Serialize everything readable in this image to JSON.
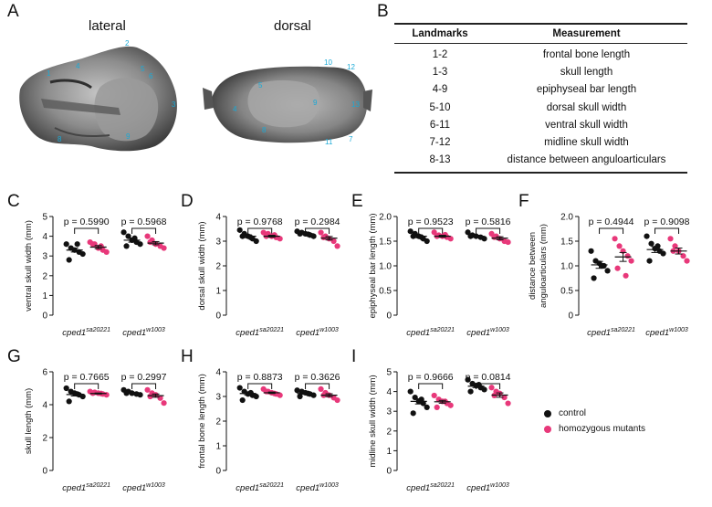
{
  "panels": {
    "A": "A",
    "B": "B",
    "C": "C",
    "D": "D",
    "E": "E",
    "F": "F",
    "G": "G",
    "H": "H",
    "I": "I"
  },
  "panel_a": {
    "views": [
      "lateral",
      "dorsal"
    ],
    "landmarks_lateral": [
      "1",
      "2",
      "3",
      "4",
      "5",
      "6",
      "8",
      "9"
    ],
    "landmarks_dorsal": [
      "10",
      "12",
      "4",
      "5",
      "7",
      "8",
      "9",
      "11",
      "13"
    ]
  },
  "table": {
    "headers": [
      "Landmarks",
      "Measurement"
    ],
    "rows": [
      [
        "1-2",
        "frontal bone length"
      ],
      [
        "1-3",
        "skull length"
      ],
      [
        "4-9",
        "epiphyseal bar length"
      ],
      [
        "5-10",
        "dorsal skull width"
      ],
      [
        "6-11",
        "ventral skull width"
      ],
      [
        "7-12",
        "midline skull width"
      ],
      [
        "8-13",
        "distance between anguloarticulars"
      ]
    ]
  },
  "colors": {
    "control": "#111111",
    "mutant": "#e8387a"
  },
  "legend": [
    {
      "label": "control",
      "color": "#111111"
    },
    {
      "label": "homozygous mutants",
      "color": "#e8387a"
    }
  ],
  "groups": [
    {
      "base": "cped1",
      "sup": "sa20221"
    },
    {
      "base": "cped1",
      "sup": "w1003"
    }
  ],
  "chart_data": [
    {
      "panel": "C",
      "type": "scatter",
      "ylabel": "ventral skull width (mm)",
      "ylim": [
        0,
        5
      ],
      "yticks": [
        0,
        1,
        2,
        3,
        4,
        5
      ],
      "pvalues": [
        "p = 0.5990",
        "p = 0.5968"
      ],
      "series": [
        {
          "name": "control",
          "group": 0,
          "values": [
            3.6,
            3.4,
            3.3,
            3.2,
            3.1,
            2.8,
            3.6
          ],
          "mean": 3.3,
          "sem": 0.1
        },
        {
          "name": "homozygous mutants",
          "group": 0,
          "values": [
            3.7,
            3.6,
            3.4,
            3.3,
            3.2,
            3.6,
            3.5
          ],
          "mean": 3.45,
          "sem": 0.08
        },
        {
          "name": "control",
          "group": 1,
          "values": [
            4.2,
            4.0,
            3.8,
            3.7,
            3.6,
            3.5,
            3.9
          ],
          "mean": 3.8,
          "sem": 0.1
        },
        {
          "name": "homozygous mutants",
          "group": 1,
          "values": [
            4.0,
            3.8,
            3.6,
            3.5,
            3.4,
            3.7
          ],
          "mean": 3.65,
          "sem": 0.08
        }
      ]
    },
    {
      "panel": "D",
      "type": "scatter",
      "ylabel": "dorsal skull width (mm)",
      "ylim": [
        0,
        4
      ],
      "yticks": [
        0,
        1,
        2,
        3,
        4
      ],
      "pvalues": [
        "p = 0.9768",
        "p = 0.2984"
      ],
      "series": [
        {
          "name": "control",
          "group": 0,
          "values": [
            3.45,
            3.3,
            3.2,
            3.1,
            3.0,
            3.2,
            3.15
          ],
          "mean": 3.2,
          "sem": 0.06
        },
        {
          "name": "homozygous mutants",
          "group": 0,
          "values": [
            3.35,
            3.3,
            3.2,
            3.15,
            3.1,
            3.2,
            3.25
          ],
          "mean": 3.2,
          "sem": 0.04
        },
        {
          "name": "control",
          "group": 1,
          "values": [
            3.4,
            3.35,
            3.3,
            3.25,
            3.2,
            3.3,
            3.28
          ],
          "mean": 3.3,
          "sem": 0.03
        },
        {
          "name": "homozygous mutants",
          "group": 1,
          "values": [
            3.35,
            3.2,
            3.1,
            3.0,
            2.8,
            3.15
          ],
          "mean": 3.12,
          "sem": 0.07
        }
      ]
    },
    {
      "panel": "E",
      "type": "scatter",
      "ylabel": "epiphyseal bar length (mm)",
      "ylim": [
        0,
        2.0
      ],
      "yticks": [
        0,
        0.5,
        1.0,
        1.5,
        2.0
      ],
      "pvalues": [
        "p = 0.9523",
        "p = 0.5816"
      ],
      "series": [
        {
          "name": "control",
          "group": 0,
          "values": [
            1.7,
            1.65,
            1.6,
            1.55,
            1.5,
            1.6,
            1.58
          ],
          "mean": 1.6,
          "sem": 0.03
        },
        {
          "name": "homozygous mutants",
          "group": 0,
          "values": [
            1.68,
            1.62,
            1.6,
            1.58,
            1.55,
            1.6,
            1.63
          ],
          "mean": 1.6,
          "sem": 0.02
        },
        {
          "name": "control",
          "group": 1,
          "values": [
            1.68,
            1.62,
            1.6,
            1.58,
            1.55,
            1.6
          ],
          "mean": 1.6,
          "sem": 0.02
        },
        {
          "name": "homozygous mutants",
          "group": 1,
          "values": [
            1.65,
            1.6,
            1.55,
            1.5,
            1.48,
            1.58
          ],
          "mean": 1.56,
          "sem": 0.03
        }
      ]
    },
    {
      "panel": "F",
      "type": "scatter",
      "ylabel": "distance between anguloarticulars (mm)",
      "ylim": [
        0,
        2.0
      ],
      "yticks": [
        0,
        0.5,
        1.0,
        1.5,
        2.0
      ],
      "pvalues": [
        "p = 0.4944",
        "p = 0.9098"
      ],
      "series": [
        {
          "name": "control",
          "group": 0,
          "values": [
            1.3,
            1.1,
            1.05,
            1.0,
            0.9,
            0.75,
            1.0
          ],
          "mean": 1.02,
          "sem": 0.07
        },
        {
          "name": "homozygous mutants",
          "group": 0,
          "values": [
            1.55,
            1.4,
            1.3,
            1.2,
            1.1,
            0.95,
            0.8
          ],
          "mean": 1.18,
          "sem": 0.09
        },
        {
          "name": "control",
          "group": 1,
          "values": [
            1.6,
            1.45,
            1.35,
            1.3,
            1.25,
            1.1,
            1.4
          ],
          "mean": 1.33,
          "sem": 0.06
        },
        {
          "name": "homozygous mutants",
          "group": 1,
          "values": [
            1.55,
            1.4,
            1.3,
            1.2,
            1.1,
            1.3
          ],
          "mean": 1.3,
          "sem": 0.06
        }
      ]
    },
    {
      "panel": "G",
      "type": "scatter",
      "ylabel": "skull length (mm)",
      "ylim": [
        0,
        6
      ],
      "yticks": [
        0,
        2,
        4,
        6
      ],
      "pvalues": [
        "p = 0.7665",
        "p = 0.2997"
      ],
      "series": [
        {
          "name": "control",
          "group": 0,
          "values": [
            5.0,
            4.8,
            4.7,
            4.6,
            4.5,
            4.2,
            4.65
          ],
          "mean": 4.62,
          "sem": 0.09
        },
        {
          "name": "homozygous mutants",
          "group": 0,
          "values": [
            4.8,
            4.75,
            4.7,
            4.65,
            4.6,
            4.7,
            4.68
          ],
          "mean": 4.68,
          "sem": 0.03
        },
        {
          "name": "control",
          "group": 1,
          "values": [
            4.9,
            4.8,
            4.7,
            4.65,
            4.6,
            4.7
          ],
          "mean": 4.72,
          "sem": 0.04
        },
        {
          "name": "homozygous mutants",
          "group": 1,
          "values": [
            4.9,
            4.7,
            4.6,
            4.4,
            4.1,
            4.5
          ],
          "mean": 4.55,
          "sem": 0.1
        }
      ]
    },
    {
      "panel": "H",
      "type": "scatter",
      "ylabel": "frontal bone length (mm)",
      "ylim": [
        0,
        4
      ],
      "yticks": [
        0,
        1,
        2,
        3,
        4
      ],
      "pvalues": [
        "p = 0.8873",
        "p = 0.3626"
      ],
      "series": [
        {
          "name": "control",
          "group": 0,
          "values": [
            3.35,
            3.2,
            3.1,
            3.05,
            3.0,
            2.85,
            3.15
          ],
          "mean": 3.12,
          "sem": 0.06
        },
        {
          "name": "homozygous mutants",
          "group": 0,
          "values": [
            3.3,
            3.2,
            3.15,
            3.1,
            3.05,
            3.2,
            3.12
          ],
          "mean": 3.15,
          "sem": 0.03
        },
        {
          "name": "control",
          "group": 1,
          "values": [
            3.25,
            3.2,
            3.15,
            3.1,
            3.05,
            3.0,
            3.12
          ],
          "mean": 3.12,
          "sem": 0.03
        },
        {
          "name": "homozygous mutants",
          "group": 1,
          "values": [
            3.3,
            3.15,
            3.05,
            2.95,
            2.85,
            3.05
          ],
          "mean": 3.05,
          "sem": 0.06
        }
      ]
    },
    {
      "panel": "I",
      "type": "scatter",
      "ylabel": "midline skull width (mm)",
      "ylim": [
        0,
        5
      ],
      "yticks": [
        0,
        1,
        2,
        3,
        4,
        5
      ],
      "pvalues": [
        "p = 0.9666",
        "p = 0.0814"
      ],
      "series": [
        {
          "name": "control",
          "group": 0,
          "values": [
            4.0,
            3.7,
            3.5,
            3.4,
            3.2,
            2.9,
            3.6
          ],
          "mean": 3.5,
          "sem": 0.13
        },
        {
          "name": "homozygous mutants",
          "group": 0,
          "values": [
            3.8,
            3.6,
            3.5,
            3.4,
            3.3,
            3.2,
            3.5
          ],
          "mean": 3.48,
          "sem": 0.07
        },
        {
          "name": "control",
          "group": 1,
          "values": [
            4.6,
            4.4,
            4.3,
            4.2,
            4.1,
            4.0,
            4.35
          ],
          "mean": 4.27,
          "sem": 0.07
        },
        {
          "name": "homozygous mutants",
          "group": 1,
          "values": [
            4.2,
            4.0,
            3.9,
            3.7,
            3.4,
            3.8
          ],
          "mean": 3.82,
          "sem": 0.11
        }
      ]
    }
  ]
}
